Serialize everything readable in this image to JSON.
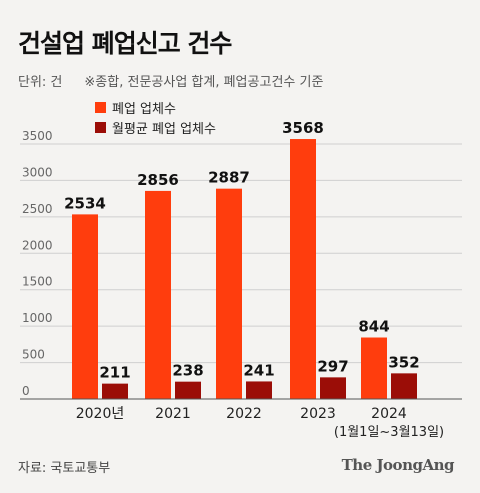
{
  "title": "건설업 폐업신고 건수",
  "unit_label": "단위: 건",
  "note": "※종합, 전문공사업 합계, 폐업공고건수 기준",
  "source": "자료: 국토교통부",
  "brand": "The JoongAng",
  "colors": {
    "primary": "#ff3d0d",
    "secondary": "#9b0d07"
  },
  "chart_data": {
    "type": "bar",
    "categories": [
      "2020년",
      "2021",
      "2022",
      "2023",
      "2024"
    ],
    "category_sublabels": [
      "",
      "",
      "",
      "",
      "(1월1일~3월13일)"
    ],
    "series": [
      {
        "name": "폐업 업체수",
        "values": [
          2534,
          2856,
          2887,
          3568,
          844
        ]
      },
      {
        "name": "월평균 폐업 업체수",
        "values": [
          211,
          238,
          241,
          297,
          352
        ]
      }
    ],
    "yticks": [
      0,
      500,
      1000,
      1500,
      2000,
      2500,
      3000,
      3500
    ],
    "ylim": [
      0,
      3600
    ],
    "grid": true,
    "legend": "top-left"
  }
}
